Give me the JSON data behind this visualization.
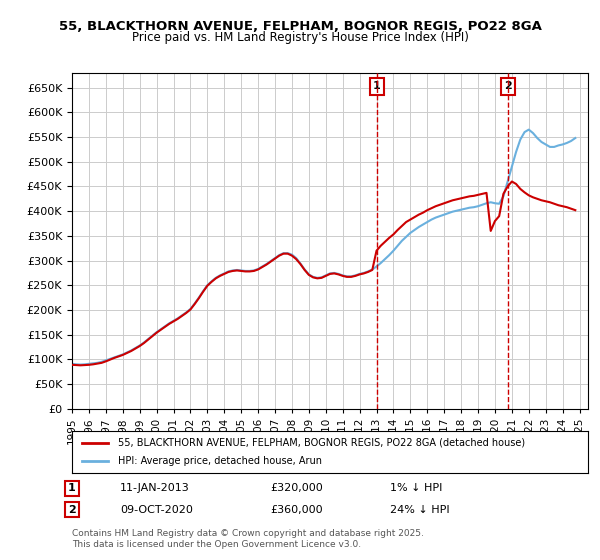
{
  "title": "55, BLACKTHORN AVENUE, FELPHAM, BOGNOR REGIS, PO22 8GA",
  "subtitle": "Price paid vs. HM Land Registry's House Price Index (HPI)",
  "ylabel_ticks": [
    0,
    50000,
    100000,
    150000,
    200000,
    250000,
    300000,
    350000,
    400000,
    450000,
    500000,
    550000,
    600000,
    650000
  ],
  "ylim": [
    0,
    680000
  ],
  "xlim_start": 1995.0,
  "xlim_end": 2025.5,
  "x_ticks": [
    1995,
    1996,
    1997,
    1998,
    1999,
    2000,
    2001,
    2002,
    2003,
    2004,
    2005,
    2006,
    2007,
    2008,
    2009,
    2010,
    2011,
    2012,
    2013,
    2014,
    2015,
    2016,
    2017,
    2018,
    2019,
    2020,
    2021,
    2022,
    2023,
    2024,
    2025
  ],
  "hpi_color": "#6ab0de",
  "price_color": "#cc0000",
  "marker1_date": "11-JAN-2013",
  "marker1_price": 320000,
  "marker1_pct": "1% ↓ HPI",
  "marker1_x": 2013.03,
  "marker2_date": "09-OCT-2020",
  "marker2_price": 360000,
  "marker2_pct": "24% ↓ HPI",
  "marker2_x": 2020.77,
  "legend_label_red": "55, BLACKTHORN AVENUE, FELPHAM, BOGNOR REGIS, PO22 8GA (detached house)",
  "legend_label_blue": "HPI: Average price, detached house, Arun",
  "footer": "Contains HM Land Registry data © Crown copyright and database right 2025.\nThis data is licensed under the Open Government Licence v3.0.",
  "background_color": "#ffffff",
  "grid_color": "#cccccc",
  "hpi_line_data_x": [
    1995.0,
    1995.25,
    1995.5,
    1995.75,
    1996.0,
    1996.25,
    1996.5,
    1996.75,
    1997.0,
    1997.25,
    1997.5,
    1997.75,
    1998.0,
    1998.25,
    1998.5,
    1998.75,
    1999.0,
    1999.25,
    1999.5,
    1999.75,
    2000.0,
    2000.25,
    2000.5,
    2000.75,
    2001.0,
    2001.25,
    2001.5,
    2001.75,
    2002.0,
    2002.25,
    2002.5,
    2002.75,
    2003.0,
    2003.25,
    2003.5,
    2003.75,
    2004.0,
    2004.25,
    2004.5,
    2004.75,
    2005.0,
    2005.25,
    2005.5,
    2005.75,
    2006.0,
    2006.25,
    2006.5,
    2006.75,
    2007.0,
    2007.25,
    2007.5,
    2007.75,
    2008.0,
    2008.25,
    2008.5,
    2008.75,
    2009.0,
    2009.25,
    2009.5,
    2009.75,
    2010.0,
    2010.25,
    2010.5,
    2010.75,
    2011.0,
    2011.25,
    2011.5,
    2011.75,
    2012.0,
    2012.25,
    2012.5,
    2012.75,
    2013.0,
    2013.25,
    2013.5,
    2013.75,
    2014.0,
    2014.25,
    2014.5,
    2014.75,
    2015.0,
    2015.25,
    2015.5,
    2015.75,
    2016.0,
    2016.25,
    2016.5,
    2016.75,
    2017.0,
    2017.25,
    2017.5,
    2017.75,
    2018.0,
    2018.25,
    2018.5,
    2018.75,
    2019.0,
    2019.25,
    2019.5,
    2019.75,
    2020.0,
    2020.25,
    2020.5,
    2020.75,
    2021.0,
    2021.25,
    2021.5,
    2021.75,
    2022.0,
    2022.25,
    2022.5,
    2022.75,
    2023.0,
    2023.25,
    2023.5,
    2023.75,
    2024.0,
    2024.25,
    2024.5,
    2024.75
  ],
  "hpi_line_data_y": [
    91000,
    90000,
    89500,
    90000,
    91000,
    92000,
    93000,
    95000,
    98000,
    101000,
    104000,
    107000,
    110000,
    114000,
    118000,
    123000,
    128000,
    134000,
    141000,
    148000,
    155000,
    161000,
    167000,
    173000,
    178000,
    183000,
    189000,
    195000,
    202000,
    213000,
    225000,
    238000,
    250000,
    258000,
    265000,
    270000,
    274000,
    278000,
    280000,
    281000,
    280000,
    279000,
    279000,
    280000,
    283000,
    288000,
    293000,
    299000,
    305000,
    311000,
    315000,
    315000,
    312000,
    305000,
    294000,
    282000,
    272000,
    267000,
    265000,
    266000,
    270000,
    274000,
    275000,
    273000,
    270000,
    268000,
    268000,
    270000,
    273000,
    275000,
    278000,
    282000,
    288000,
    295000,
    303000,
    311000,
    320000,
    330000,
    340000,
    348000,
    356000,
    362000,
    368000,
    373000,
    378000,
    383000,
    387000,
    390000,
    393000,
    396000,
    399000,
    401000,
    403000,
    405000,
    407000,
    408000,
    410000,
    413000,
    416000,
    418000,
    416000,
    415000,
    430000,
    460000,
    490000,
    520000,
    545000,
    560000,
    565000,
    558000,
    548000,
    540000,
    535000,
    530000,
    530000,
    533000,
    535000,
    538000,
    542000,
    548000
  ],
  "price_line_data_x": [
    1995.0,
    1995.25,
    1995.5,
    1995.75,
    1996.0,
    1996.25,
    1996.5,
    1996.75,
    1997.0,
    1997.25,
    1997.5,
    1997.75,
    1998.0,
    1998.25,
    1998.5,
    1998.75,
    1999.0,
    1999.25,
    1999.5,
    1999.75,
    2000.0,
    2000.25,
    2000.5,
    2000.75,
    2001.0,
    2001.25,
    2001.5,
    2001.75,
    2002.0,
    2002.25,
    2002.5,
    2002.75,
    2003.0,
    2003.25,
    2003.5,
    2003.75,
    2004.0,
    2004.25,
    2004.5,
    2004.75,
    2005.0,
    2005.25,
    2005.5,
    2005.75,
    2006.0,
    2006.25,
    2006.5,
    2006.75,
    2007.0,
    2007.25,
    2007.5,
    2007.75,
    2008.0,
    2008.25,
    2008.5,
    2008.75,
    2009.0,
    2009.25,
    2009.5,
    2009.75,
    2010.0,
    2010.25,
    2010.5,
    2010.75,
    2011.0,
    2011.25,
    2011.5,
    2011.75,
    2012.0,
    2012.25,
    2012.5,
    2012.75,
    2013.0,
    2013.25,
    2013.5,
    2013.75,
    2014.0,
    2014.25,
    2014.5,
    2014.75,
    2015.0,
    2015.25,
    2015.5,
    2015.75,
    2016.0,
    2016.25,
    2016.5,
    2016.75,
    2017.0,
    2017.25,
    2017.5,
    2017.75,
    2018.0,
    2018.25,
    2018.5,
    2018.75,
    2019.0,
    2019.25,
    2019.5,
    2019.75,
    2020.0,
    2020.25,
    2020.5,
    2020.75,
    2021.0,
    2021.25,
    2021.5,
    2021.75,
    2022.0,
    2022.25,
    2022.5,
    2022.75,
    2023.0,
    2023.25,
    2023.5,
    2023.75,
    2024.0,
    2024.25,
    2024.5,
    2024.75
  ],
  "price_line_data_y": [
    89000,
    88500,
    88000,
    88500,
    89000,
    90000,
    91500,
    93000,
    96000,
    99500,
    103000,
    106000,
    109000,
    113000,
    117000,
    122000,
    127000,
    133000,
    140000,
    147000,
    154000,
    160000,
    166000,
    172000,
    177000,
    182000,
    188000,
    194000,
    201000,
    212000,
    224000,
    237000,
    249000,
    257000,
    264000,
    269000,
    273000,
    277000,
    279000,
    280000,
    279000,
    278000,
    278000,
    279000,
    282000,
    287000,
    292000,
    298000,
    304000,
    310000,
    314000,
    314000,
    310000,
    303000,
    293000,
    281000,
    271000,
    266000,
    264000,
    265000,
    269000,
    273000,
    274000,
    272000,
    269000,
    267000,
    267000,
    269000,
    272000,
    274000,
    277000,
    281000,
    320000,
    330000,
    338000,
    346000,
    353000,
    362000,
    370000,
    378000,
    383000,
    388000,
    393000,
    397000,
    402000,
    406000,
    410000,
    413000,
    416000,
    419000,
    422000,
    424000,
    426000,
    428000,
    430000,
    431000,
    433000,
    435000,
    437000,
    360000,
    380000,
    390000,
    435000,
    450000,
    460000,
    455000,
    445000,
    438000,
    432000,
    428000,
    425000,
    422000,
    420000,
    418000,
    415000,
    412000,
    410000,
    408000,
    405000,
    402000
  ]
}
